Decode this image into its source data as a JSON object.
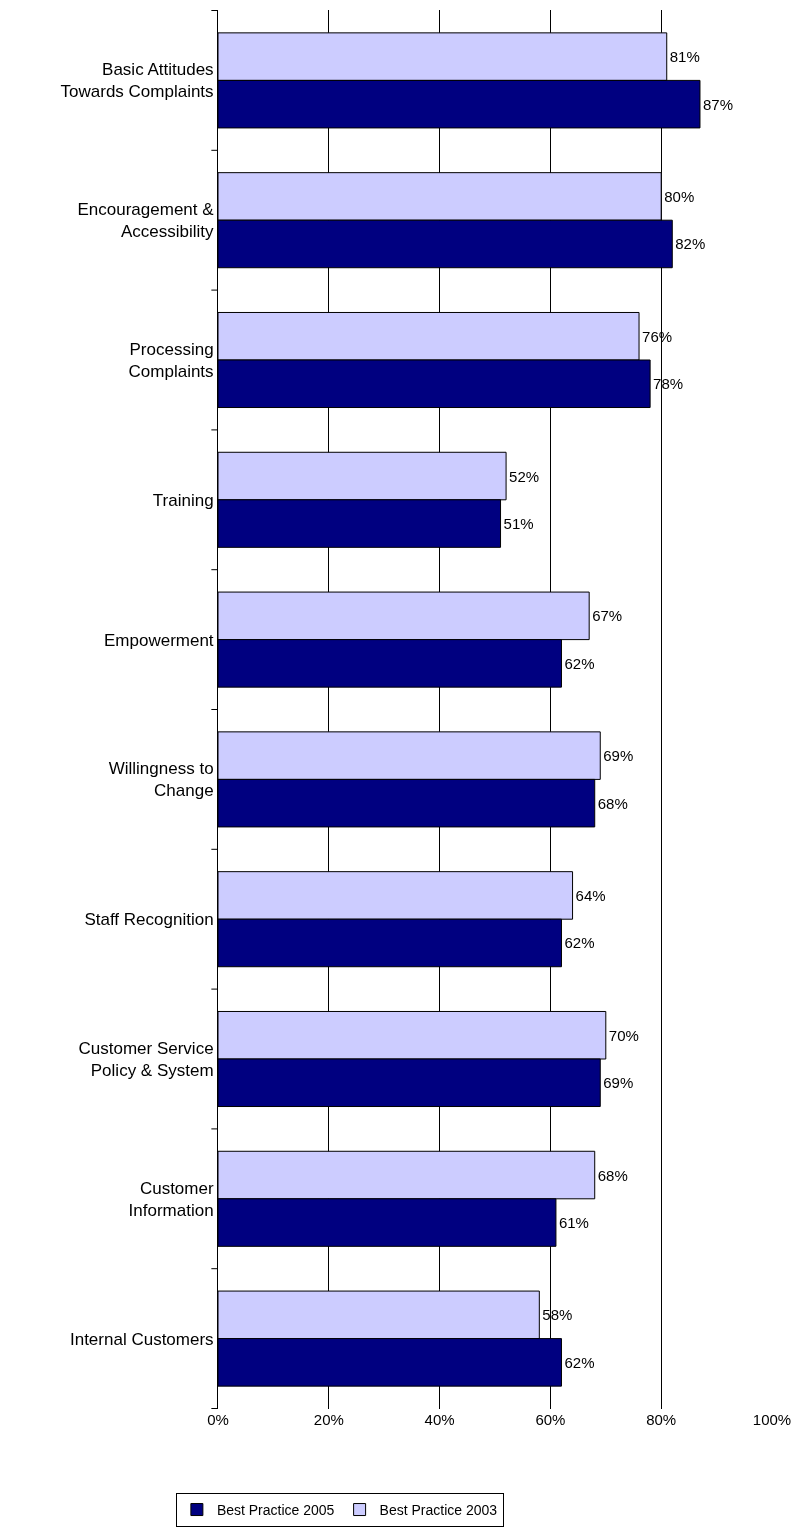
{
  "chart_data": {
    "type": "bar",
    "orientation": "horizontal",
    "categories": [
      "Basic Attitudes Towards Complaints",
      "Encouragement & Accessibility",
      "Processing Complaints",
      "Training",
      "Empowerment",
      "Willingness to Change",
      "Staff Recognition",
      "Customer Service Policy & System",
      "Customer Information",
      "Internal Customers"
    ],
    "series": [
      {
        "name": "Best Practice 2005",
        "color": "#000080",
        "values": [
          87,
          82,
          78,
          51,
          62,
          68,
          62,
          69,
          61,
          62
        ],
        "value_labels": [
          "87%",
          "82%",
          "78%",
          "51%",
          "62%",
          "68%",
          "62%",
          "69%",
          "61%",
          "62%"
        ]
      },
      {
        "name": "Best Practice 2003",
        "color": "#ccccff",
        "values": [
          81,
          80,
          76,
          52,
          67,
          69,
          64,
          70,
          68,
          58
        ],
        "value_labels": [
          "81%",
          "80%",
          "76%",
          "52%",
          "67%",
          "69%",
          "64%",
          "70%",
          "68%",
          "58%"
        ]
      }
    ],
    "xlim": [
      0,
      100
    ],
    "xticks": [
      {
        "value": 0,
        "label": "0%"
      },
      {
        "value": 20,
        "label": "20%"
      },
      {
        "value": 40,
        "label": "40%"
      },
      {
        "value": 60,
        "label": "60%"
      },
      {
        "value": 80,
        "label": "80%"
      },
      {
        "value": 100,
        "label": "100%"
      }
    ],
    "grid": "x",
    "legend": "bottom"
  }
}
